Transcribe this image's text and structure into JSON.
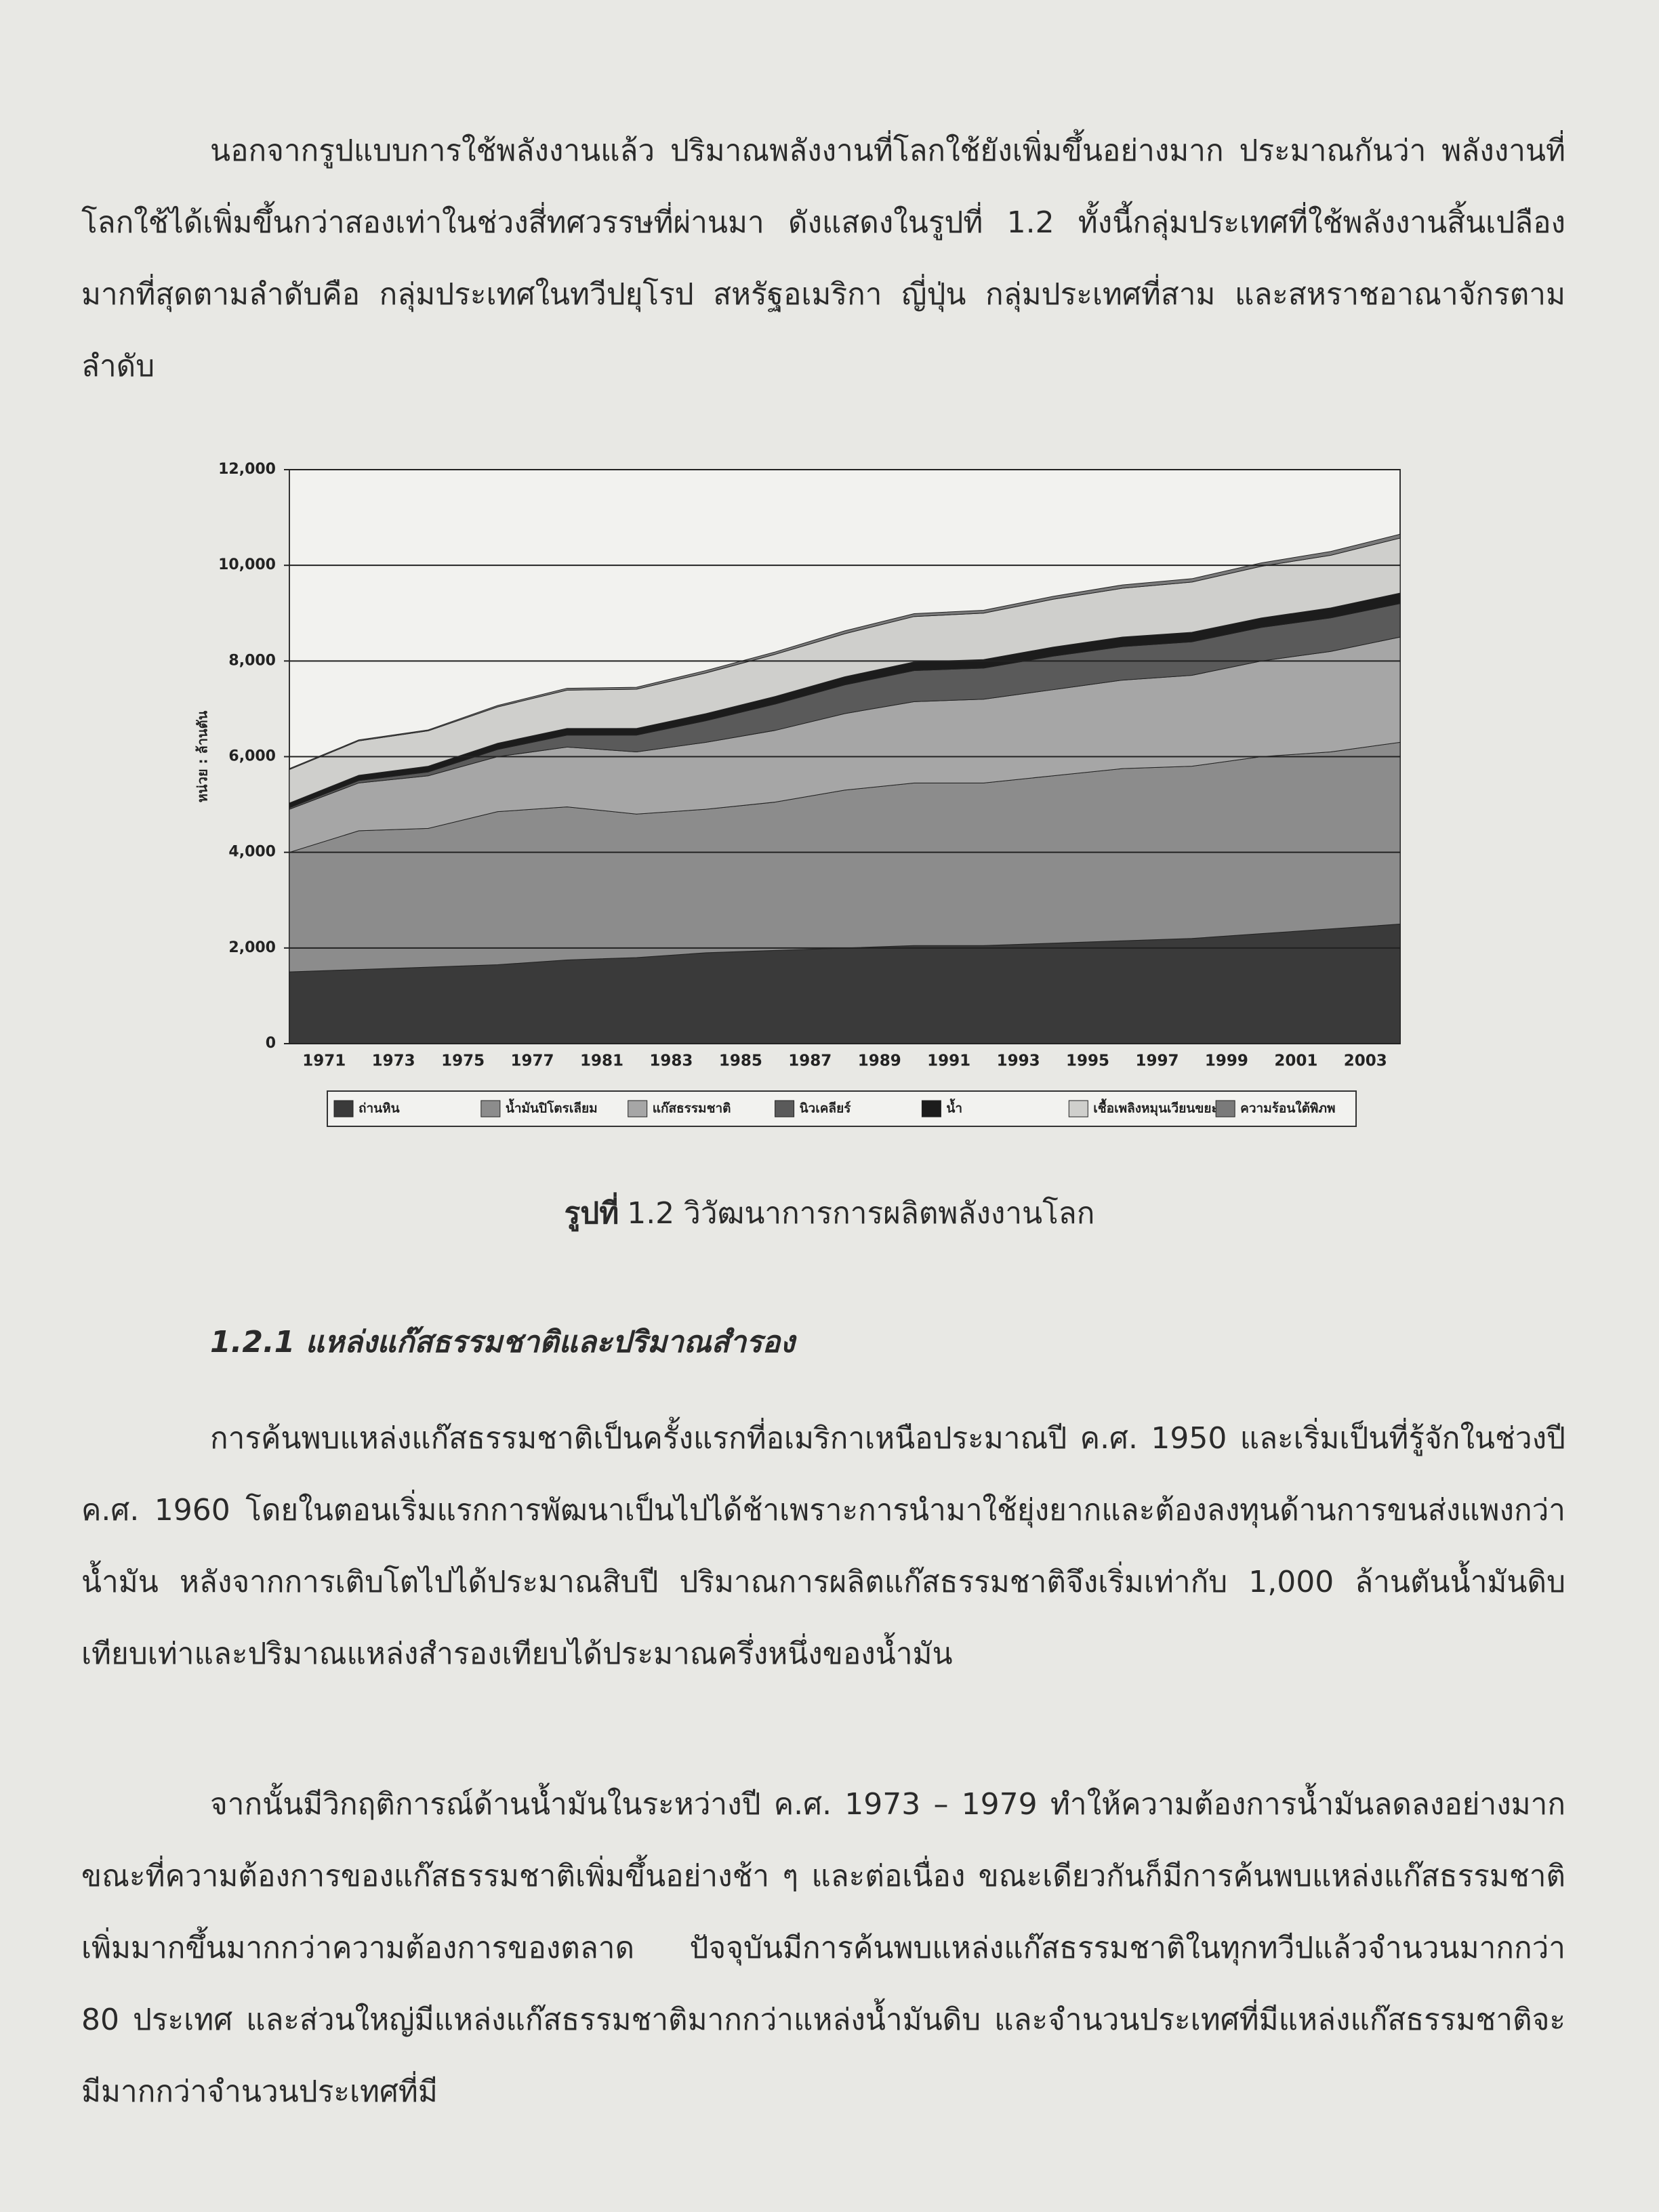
{
  "paragraph_1": "นอกจากรูปแบบการใช้พลังงานแล้ว ปริมาณพลังงานที่โลกใช้ยังเพิ่มขึ้นอย่างมาก ประมาณกันว่า พลังงานที่โลกใช้ได้เพิ่มขึ้นกว่าสองเท่าในช่วงสี่ทศวรรษที่ผ่านมา ดังแสดงในรูปที่ 1.2 ทั้งนี้กลุ่มประเทศที่ใช้พลังงานสิ้นเปลืองมากที่สุดตามลำดับคือ กลุ่มประเทศในทวีปยุโรป สหรัฐอเมริกา ญี่ปุ่น กลุ่มประเทศที่สาม และสหราชอาณาจักรตามลำดับ",
  "chart_data": {
    "type": "stacked_area",
    "y_label": "หน่วย : ล้านตัน",
    "categories": [
      "1971",
      "1973",
      "1975",
      "1977",
      "1981",
      "1983",
      "1985",
      "1987",
      "1989",
      "1991",
      "1993",
      "1995",
      "1997",
      "1999",
      "2001",
      "2003",
      null
    ],
    "ylim": [
      0,
      12000
    ],
    "yticks": [
      0,
      {
        "value": 2000,
        "label": "2,000"
      },
      {
        "value": 4000,
        "label": "4,000"
      },
      {
        "value": 6000,
        "label": "6,000"
      },
      {
        "value": 8000,
        "label": "8,000"
      },
      {
        "value": 10000,
        "label": "10,000"
      },
      {
        "value": 12000,
        "label": "12,000"
      }
    ],
    "grid": true,
    "series": [
      {
        "name": "ถ่านหิน",
        "color": "#3a3a3a",
        "values": [
          1500,
          1550,
          1600,
          1650,
          1750,
          1800,
          1900,
          1950,
          2000,
          2050,
          2050,
          2100,
          2150,
          2200,
          2300,
          2400,
          2500
        ]
      },
      {
        "name": "น้ำมันปิโตรเลียม",
        "color": "#8c8c8c",
        "values": [
          2500,
          2900,
          2900,
          3200,
          3200,
          3000,
          3000,
          3100,
          3300,
          3400,
          3400,
          3500,
          3600,
          3600,
          3700,
          3700,
          3800
        ]
      },
      {
        "name": "แก๊สธรรมชาติ",
        "color": "#a6a6a6",
        "values": [
          900,
          1000,
          1100,
          1150,
          1250,
          1300,
          1400,
          1500,
          1600,
          1700,
          1750,
          1800,
          1850,
          1900,
          2000,
          2100,
          2200
        ]
      },
      {
        "name": "นิวเคลียร์",
        "color": "#5a5a5a",
        "values": [
          30,
          50,
          80,
          150,
          250,
          350,
          450,
          550,
          600,
          650,
          650,
          700,
          700,
          700,
          700,
          700,
          700
        ]
      },
      {
        "name": "น้ำ",
        "color": "#1c1c1c",
        "values": [
          100,
          110,
          120,
          130,
          140,
          140,
          150,
          160,
          170,
          180,
          180,
          190,
          200,
          200,
          200,
          210,
          220
        ]
      },
      {
        "name": "เชื้อเพลิงหมุนเวียนขยะ",
        "color": "#cfcfcc",
        "values": [
          700,
          720,
          740,
          760,
          800,
          820,
          850,
          880,
          900,
          950,
          970,
          1000,
          1020,
          1050,
          1080,
          1100,
          1150
        ]
      },
      {
        "name": "ความร้อนใต้พิภพ",
        "color": "#7a7a7a",
        "values": [
          20,
          20,
          20,
          30,
          40,
          40,
          50,
          50,
          60,
          60,
          60,
          60,
          70,
          70,
          70,
          80,
          80
        ]
      }
    ]
  },
  "caption": {
    "label": "รูปที่",
    "text": "1.2 วิวัฒนาการการผลิตพลังงานโลก"
  },
  "heading": "1.2.1 แหล่งแก๊สธรรมชาติและปริมาณสำรอง",
  "paragraph_2": "การค้นพบแหล่งแก๊สธรรมชาติเป็นครั้งแรกที่อเมริกาเหนือประมาณปี ค.ศ. 1950 และเริ่มเป็นที่รู้จักในช่วงปี ค.ศ. 1960 โดยในตอนเริ่มแรกการพัฒนาเป็นไปได้ช้าเพราะการนำมาใช้ยุ่งยากและต้องลงทุนด้านการขนส่งแพงกว่าน้ำมัน หลังจากการเติบโตไปได้ประมาณสิบปี ปริมาณการผลิตแก๊สธรรมชาติจึงเริ่มเท่ากับ 1,000 ล้านตันน้ำมันดิบเทียบเท่าและปริมาณแหล่งสำรองเทียบได้ประมาณครึ่งหนึ่งของน้ำมัน",
  "paragraph_3": "จากนั้นมีวิกฤติการณ์ด้านน้ำมันในระหว่างปี ค.ศ. 1973 – 1979 ทำให้ความต้องการน้ำมันลดลงอย่างมาก ขณะที่ความต้องการของแก๊สธรรมชาติเพิ่มขึ้นอย่างช้า ๆ และต่อเนื่อง ขณะเดียวกันก็มีการค้นพบแหล่งแก๊สธรรมชาติเพิ่มมากขึ้นมากกว่าความต้องการของตลาด ปัจจุบันมีการค้นพบแหล่งแก๊สธรรมชาติในทุกทวีปแล้วจำนวนมากกว่า 80 ประเทศ และส่วนใหญ่มีแหล่งแก๊สธรรมชาติมากกว่าแหล่งน้ำมันดิบ และจำนวนประเทศที่มีแหล่งแก๊สธรรมชาติจะมีมากกว่าจำนวนประเทศที่มี"
}
